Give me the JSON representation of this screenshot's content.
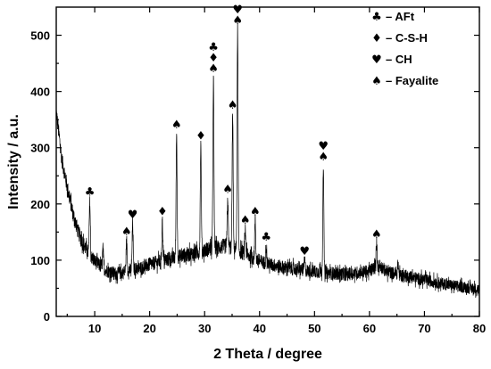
{
  "chart_data": {
    "type": "line",
    "title": "",
    "xlabel": "2 Theta / degree",
    "ylabel": "Intensity / a.u.",
    "xlim": [
      3,
      80
    ],
    "ylim": [
      0,
      550
    ],
    "x_ticks": [
      10,
      20,
      30,
      40,
      50,
      60,
      70,
      80
    ],
    "y_ticks": [
      0,
      100,
      200,
      300,
      400,
      500
    ],
    "grid": false,
    "legend_position": "top-right",
    "legend": [
      {
        "symbol": "club",
        "glyph": "♣",
        "label": "– AFt"
      },
      {
        "symbol": "diamond",
        "glyph": "♦",
        "label": "– C-S-H"
      },
      {
        "symbol": "heart",
        "glyph": "♥",
        "label": "– CH"
      },
      {
        "symbol": "spade",
        "glyph": "♠",
        "label": "– Fayalite"
      }
    ],
    "series": [
      {
        "baseline": [
          [
            3,
            365
          ],
          [
            4,
            280
          ],
          [
            5,
            230
          ],
          [
            6,
            185
          ],
          [
            7,
            150
          ],
          [
            8,
            128
          ],
          [
            9,
            110
          ],
          [
            10,
            98
          ],
          [
            11,
            90
          ],
          [
            12,
            82
          ],
          [
            13,
            78
          ],
          [
            14,
            76
          ],
          [
            15,
            78
          ],
          [
            16,
            82
          ],
          [
            18,
            85
          ],
          [
            20,
            92
          ],
          [
            22,
            98
          ],
          [
            24,
            103
          ],
          [
            26,
            108
          ],
          [
            28,
            112
          ],
          [
            30,
            118
          ],
          [
            32,
            122
          ],
          [
            34,
            125
          ],
          [
            36,
            118
          ],
          [
            38,
            108
          ],
          [
            40,
            98
          ],
          [
            42,
            92
          ],
          [
            44,
            88
          ],
          [
            46,
            85
          ],
          [
            48,
            82
          ],
          [
            50,
            80
          ],
          [
            52,
            78
          ],
          [
            54,
            76
          ],
          [
            56,
            75
          ],
          [
            58,
            78
          ],
          [
            60,
            80
          ],
          [
            61,
            88
          ],
          [
            62,
            90
          ],
          [
            63,
            80
          ],
          [
            65,
            75
          ],
          [
            70,
            65
          ],
          [
            75,
            55
          ],
          [
            80,
            48
          ]
        ],
        "peaks": [
          [
            9.1,
            205
          ],
          [
            11.5,
            120
          ],
          [
            15.8,
            135
          ],
          [
            16.9,
            165
          ],
          [
            22.3,
            170
          ],
          [
            24.9,
            325
          ],
          [
            29.3,
            305
          ],
          [
            31.6,
            425
          ],
          [
            34.2,
            210
          ],
          [
            35.1,
            360
          ],
          [
            36.0,
            510
          ],
          [
            37.4,
            155
          ],
          [
            39.2,
            170
          ],
          [
            41.2,
            125
          ],
          [
            48.2,
            100
          ],
          [
            51.6,
            268
          ],
          [
            61.3,
            130
          ],
          [
            65.2,
            95
          ]
        ],
        "noise_amplitude": 14
      }
    ],
    "annotations": [
      {
        "x": 9.1,
        "y": 205,
        "glyphs": [
          "♣"
        ]
      },
      {
        "x": 15.8,
        "y": 135,
        "glyphs": [
          "♠"
        ]
      },
      {
        "x": 16.9,
        "y": 165,
        "glyphs": [
          "♥"
        ]
      },
      {
        "x": 22.3,
        "y": 170,
        "glyphs": [
          "♦"
        ]
      },
      {
        "x": 24.9,
        "y": 325,
        "glyphs": [
          "♠"
        ]
      },
      {
        "x": 29.3,
        "y": 305,
        "glyphs": [
          "♦"
        ]
      },
      {
        "x": 31.6,
        "y": 425,
        "glyphs": [
          "♣",
          "♦",
          "♠"
        ]
      },
      {
        "x": 34.2,
        "y": 210,
        "glyphs": [
          "♠"
        ]
      },
      {
        "x": 35.1,
        "y": 360,
        "glyphs": [
          "♠"
        ]
      },
      {
        "x": 36.0,
        "y": 510,
        "glyphs": [
          "♥",
          "♠"
        ]
      },
      {
        "x": 37.4,
        "y": 155,
        "glyphs": [
          "♠"
        ]
      },
      {
        "x": 39.2,
        "y": 170,
        "glyphs": [
          "♠"
        ]
      },
      {
        "x": 41.2,
        "y": 125,
        "glyphs": [
          "♣"
        ]
      },
      {
        "x": 48.2,
        "y": 100,
        "glyphs": [
          "♥"
        ]
      },
      {
        "x": 51.6,
        "y": 268,
        "glyphs": [
          "♥",
          "♠"
        ]
      },
      {
        "x": 61.3,
        "y": 130,
        "glyphs": [
          "♠"
        ]
      }
    ]
  }
}
